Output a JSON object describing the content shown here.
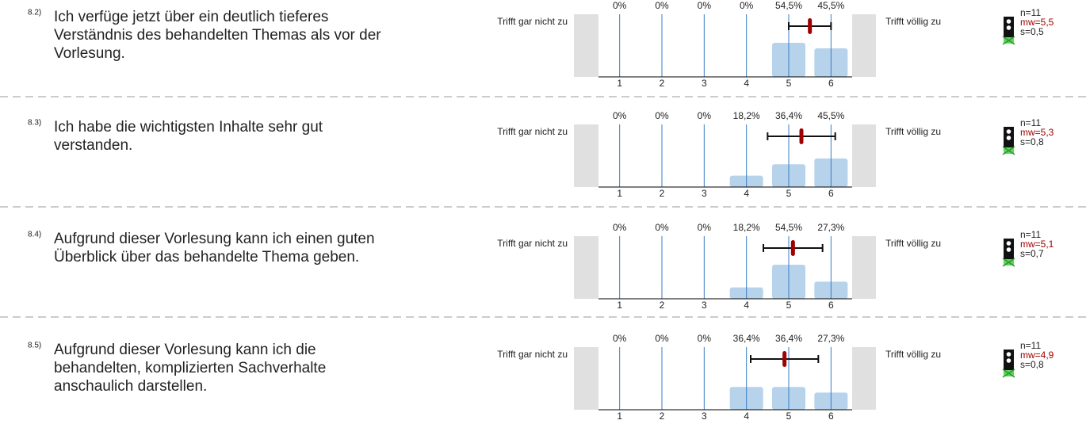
{
  "chart_data": [
    {
      "type": "bar",
      "label": "8.2)",
      "title_lines": [
        "Ich verfüge jetzt über ein deutlich tieferes",
        "Verständnis des behandelten Themas als vor der",
        "Vorlesung."
      ],
      "left_label": "Trifft gar nicht zu",
      "right_label": "Trifft völlig zu",
      "categories": [
        "1",
        "2",
        "3",
        "4",
        "5",
        "6"
      ],
      "values": [
        0,
        0,
        0,
        0,
        54.5,
        45.5
      ],
      "value_labels": [
        "0%",
        "0%",
        "0%",
        "0%",
        "54,5%",
        "45,5%"
      ],
      "ylim": [
        0,
        100
      ],
      "xlim": [
        0.5,
        6.5
      ],
      "mean": 5.5,
      "mean_label": "mw=5,5",
      "sd": 0.5,
      "sd_label": "s=0,5",
      "n_label": "n=11",
      "bar_color": "#b7d3ec",
      "mean_color": "#a00000"
    },
    {
      "type": "bar",
      "label": "8.3)",
      "title_lines": [
        "Ich habe die wichtigsten Inhalte sehr gut",
        "verstanden."
      ],
      "left_label": "Trifft gar nicht zu",
      "right_label": "Trifft völlig zu",
      "categories": [
        "1",
        "2",
        "3",
        "4",
        "5",
        "6"
      ],
      "values": [
        0,
        0,
        0,
        18.2,
        36.4,
        45.5
      ],
      "value_labels": [
        "0%",
        "0%",
        "0%",
        "18,2%",
        "36,4%",
        "45,5%"
      ],
      "ylim": [
        0,
        100
      ],
      "xlim": [
        0.5,
        6.5
      ],
      "mean": 5.3,
      "mean_label": "mw=5,3",
      "sd": 0.8,
      "sd_label": "s=0,8",
      "n_label": "n=11",
      "bar_color": "#b7d3ec",
      "mean_color": "#a00000"
    },
    {
      "type": "bar",
      "label": "8.4)",
      "title_lines": [
        "Aufgrund dieser Vorlesung kann ich einen guten",
        "Überblick über das behandelte Thema geben."
      ],
      "left_label": "Trifft gar nicht zu",
      "right_label": "Trifft völlig zu",
      "categories": [
        "1",
        "2",
        "3",
        "4",
        "5",
        "6"
      ],
      "values": [
        0,
        0,
        0,
        18.2,
        54.5,
        27.3
      ],
      "value_labels": [
        "0%",
        "0%",
        "0%",
        "18,2%",
        "54,5%",
        "27,3%"
      ],
      "ylim": [
        0,
        100
      ],
      "xlim": [
        0.5,
        6.5
      ],
      "mean": 5.1,
      "mean_label": "mw=5,1",
      "sd": 0.7,
      "sd_label": "s=0,7",
      "n_label": "n=11",
      "bar_color": "#b7d3ec",
      "mean_color": "#a00000"
    },
    {
      "type": "bar",
      "label": "8.5)",
      "title_lines": [
        "Aufgrund dieser Vorlesung kann ich die",
        "behandelten, komplizierten Sachverhalte",
        "anschaulich darstellen."
      ],
      "left_label": "Trifft gar nicht zu",
      "right_label": "Trifft völlig zu",
      "categories": [
        "1",
        "2",
        "3",
        "4",
        "5",
        "6"
      ],
      "values": [
        0,
        0,
        0,
        36.4,
        36.4,
        27.3
      ],
      "value_labels": [
        "0%",
        "0%",
        "0%",
        "36,4%",
        "36,4%",
        "27,3%"
      ],
      "ylim": [
        0,
        100
      ],
      "xlim": [
        0.5,
        6.5
      ],
      "mean": 4.9,
      "mean_label": "mw=4,9",
      "sd": 0.8,
      "sd_label": "s=0,8",
      "n_label": "n=11",
      "bar_color": "#b7d3ec",
      "mean_color": "#a00000"
    }
  ]
}
